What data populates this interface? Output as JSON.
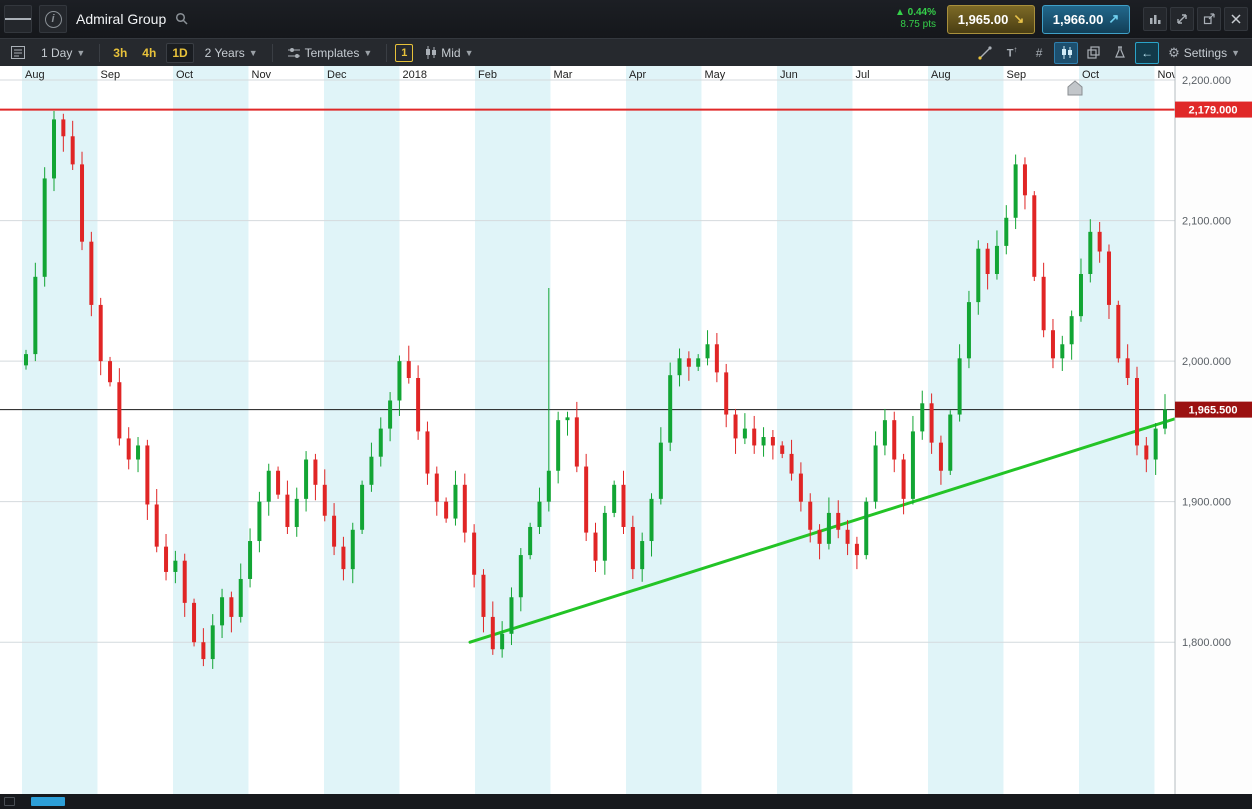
{
  "topbar": {
    "instrument": "Admiral Group",
    "change_pct": "0.44%",
    "change_pts": "8.75 pts",
    "sell_price": "1,965.00",
    "buy_price": "1,966.00"
  },
  "toolbar": {
    "interval_label": "1 Day",
    "tf_buttons": [
      "3h",
      "4h",
      "1D"
    ],
    "range_label": "2 Years",
    "templates_label": "Templates",
    "bar_width_label": "1",
    "price_mode_label": "Mid",
    "settings_label": "Settings"
  },
  "chart_data": {
    "type": "candlestick",
    "title": "Admiral Group — 1 Day, 2 Years, Mid",
    "x_labels": [
      "Aug",
      "Sep",
      "Oct",
      "Nov",
      "Dec",
      "2018",
      "Feb",
      "Mar",
      "Apr",
      "May",
      "Jun",
      "Jul",
      "Aug",
      "Sep",
      "Oct",
      "Nov"
    ],
    "y_ticks": [
      2200,
      2100,
      2000,
      1900,
      1800
    ],
    "y_tick_labels": [
      "2,200.000",
      "2,100.000",
      "2,000.000",
      "1,900.000",
      "1,800.000"
    ],
    "ylim": [
      1692,
      2210
    ],
    "resistance_line": {
      "price": 2179,
      "label": "2,179.000",
      "color": "#e02828"
    },
    "current_price_line": {
      "price": 1965.5,
      "label": "1,965.500",
      "color": "#1a1a1a",
      "badge_color": "#9b1111"
    },
    "trendline": {
      "from_t": 0.4,
      "from_price": 1800,
      "to_t": 1.0,
      "to_price": 1959,
      "color": "#23c426"
    },
    "spike": {
      "index": 56,
      "high": 2052
    },
    "colors": {
      "up": "#12a534",
      "down": "#e02525",
      "band": "#e0f4f8",
      "axis_text": "#5a6066",
      "grid": "#d4dadd",
      "month_text": "#222222"
    },
    "closes": [
      2005,
      2060,
      2130,
      2172,
      2160,
      2140,
      2085,
      2040,
      2000,
      1985,
      1945,
      1930,
      1940,
      1898,
      1868,
      1850,
      1858,
      1828,
      1800,
      1788,
      1812,
      1832,
      1818,
      1845,
      1872,
      1900,
      1922,
      1905,
      1882,
      1902,
      1930,
      1912,
      1890,
      1868,
      1852,
      1880,
      1912,
      1932,
      1952,
      1972,
      2000,
      1988,
      1950,
      1920,
      1900,
      1888,
      1912,
      1878,
      1848,
      1818,
      1795,
      1806,
      1832,
      1862,
      1882,
      1900,
      1922,
      1958,
      1960,
      1925,
      1878,
      1858,
      1892,
      1912,
      1882,
      1852,
      1872,
      1902,
      1942,
      1990,
      2002,
      1996,
      2002,
      2012,
      1992,
      1962,
      1945,
      1952,
      1940,
      1946,
      1940,
      1934,
      1920,
      1900,
      1880,
      1870,
      1892,
      1880,
      1870,
      1862,
      1900,
      1940,
      1958,
      1930,
      1902,
      1950,
      1970,
      1942,
      1922,
      1962,
      2002,
      2042,
      2080,
      2062,
      2082,
      2102,
      2140,
      2118,
      2060,
      2022,
      2002,
      2012,
      2032,
      2062,
      2092,
      2078,
      2040,
      2002,
      1988,
      1940,
      1930,
      1952,
      1965.5
    ]
  }
}
